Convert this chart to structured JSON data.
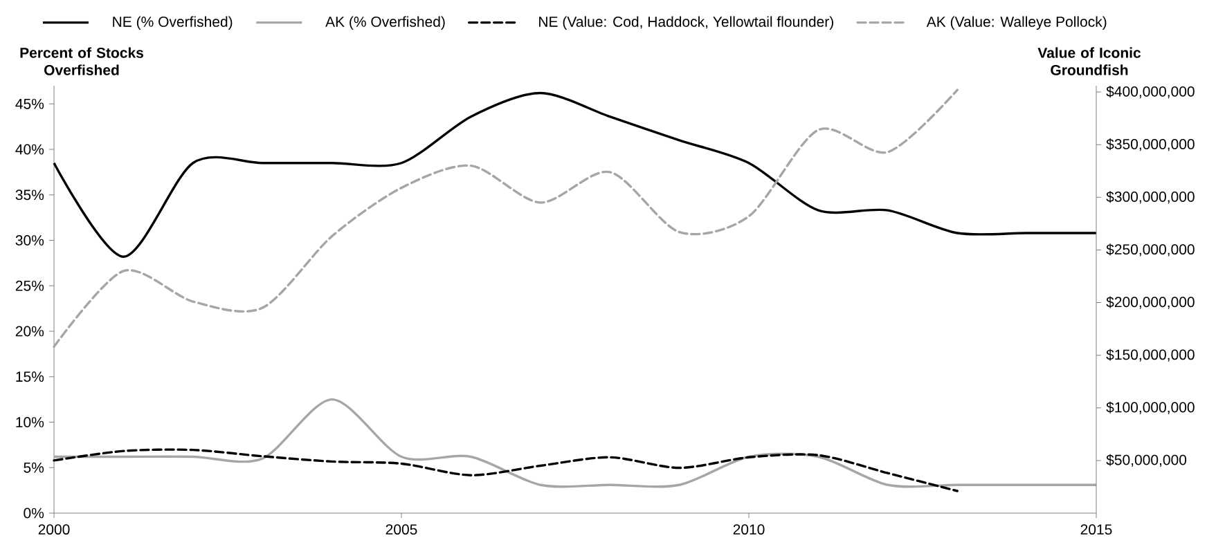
{
  "chart_data": {
    "type": "line",
    "ylabel": "Percent of Stocks Overfished",
    "y2label": "Value of Iconic Groundfish",
    "x": [
      2000,
      2001,
      2002,
      2003,
      2004,
      2005,
      2006,
      2007,
      2008,
      2009,
      2010,
      2011,
      2012,
      2013,
      2014,
      2015
    ],
    "xlim": [
      2000,
      2015
    ],
    "xticks": [
      2000,
      2005,
      2010,
      2015
    ],
    "ylim": [
      0,
      47
    ],
    "yticks": [
      {
        "value": 0,
        "label": "0%"
      },
      {
        "value": 5,
        "label": "5%"
      },
      {
        "value": 10,
        "label": "10%"
      },
      {
        "value": 15,
        "label": "15%"
      },
      {
        "value": 20,
        "label": "20%"
      },
      {
        "value": 25,
        "label": "25%"
      },
      {
        "value": 30,
        "label": "30%"
      },
      {
        "value": 35,
        "label": "35%"
      },
      {
        "value": 40,
        "label": "40%"
      },
      {
        "value": 45,
        "label": "45%"
      }
    ],
    "y2lim": [
      0,
      406000000
    ],
    "y2ticks": [
      {
        "value": 50000000,
        "label": "$50,000,000"
      },
      {
        "value": 100000000,
        "label": "$100,000,000"
      },
      {
        "value": 150000000,
        "label": "$150,000,000"
      },
      {
        "value": 200000000,
        "label": "$200,000,000"
      },
      {
        "value": 250000000,
        "label": "$250,000,000"
      },
      {
        "value": 300000000,
        "label": "$300,000,000"
      },
      {
        "value": 350000000,
        "label": "$350,000,000"
      },
      {
        "value": 400000000,
        "label": "$400,000,000"
      }
    ],
    "legend": "top",
    "grid": false,
    "marker": "none",
    "series": [
      {
        "name": "NE (% Overfished)",
        "color": "#000000",
        "line_style": "solid",
        "values": [
          38.5,
          28.2,
          38.5,
          38.5,
          38.5,
          38.5,
          43.6,
          46.2,
          43.6,
          41.0,
          38.5,
          33.3,
          33.3,
          30.8,
          30.8,
          30.8
        ]
      },
      {
        "name": "AK  (% Overfished)",
        "color": "#a6a6a6",
        "line_style": "solid",
        "values": [
          6.2,
          6.2,
          6.2,
          6.0,
          12.5,
          6.2,
          6.2,
          3.1,
          3.1,
          3.1,
          6.2,
          6.2,
          3.1,
          3.1,
          3.1,
          3.1
        ]
      },
      {
        "name": "NE (Value: Cod, Haddock, Yellowtail flounder)",
        "color": "#000000",
        "line_style": "dashed",
        "axis": "y2",
        "values": [
          50000000,
          59000000,
          60000000,
          54000000,
          49000000,
          47000000,
          36000000,
          45000000,
          53000000,
          43000000,
          53000000,
          55000000,
          38000000,
          21000000,
          null,
          null
        ]
      },
      {
        "name": "AK (Value: Walleye Pollock)",
        "color": "#a6a6a6",
        "line_style": "dashed",
        "axis": "y2",
        "values": [
          158000000,
          230000000,
          201000000,
          195000000,
          263000000,
          309000000,
          330000000,
          295000000,
          324000000,
          267000000,
          282000000,
          364000000,
          343000000,
          402000000,
          null,
          null
        ]
      }
    ]
  }
}
